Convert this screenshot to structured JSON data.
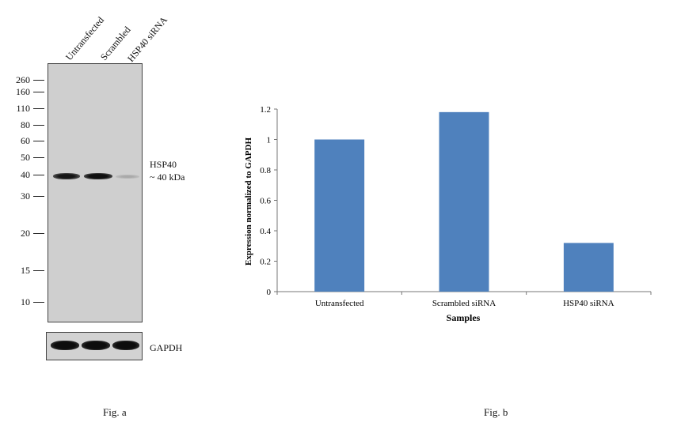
{
  "blot": {
    "lane_labels": [
      "Untransfected",
      "Scrambled",
      "HSP40 siRNA"
    ],
    "markers": [
      "260",
      "160",
      "110",
      "80",
      "60",
      "50",
      "40",
      "30",
      "20",
      "15",
      "10"
    ],
    "band_label_name": "HSP40",
    "band_label_size": "~ 40 kDa",
    "loading_control": "GAPDH",
    "caption": "Fig. a"
  },
  "chart_data": {
    "type": "bar",
    "categories": [
      "Untransfected",
      "Scrambled siRNA",
      "HSP40 siRNA"
    ],
    "values": [
      1.0,
      1.18,
      0.32
    ],
    "title": "",
    "xlabel": "Samples",
    "ylabel": "Expression normalized to GAPDH",
    "ylim": [
      0,
      1.2
    ],
    "yticks": [
      "0",
      "0.2",
      "0.4",
      "0.6",
      "0.8",
      "1",
      "1.2"
    ],
    "bar_color": "#4f81bd",
    "grid": false,
    "caption": "Fig. b"
  }
}
